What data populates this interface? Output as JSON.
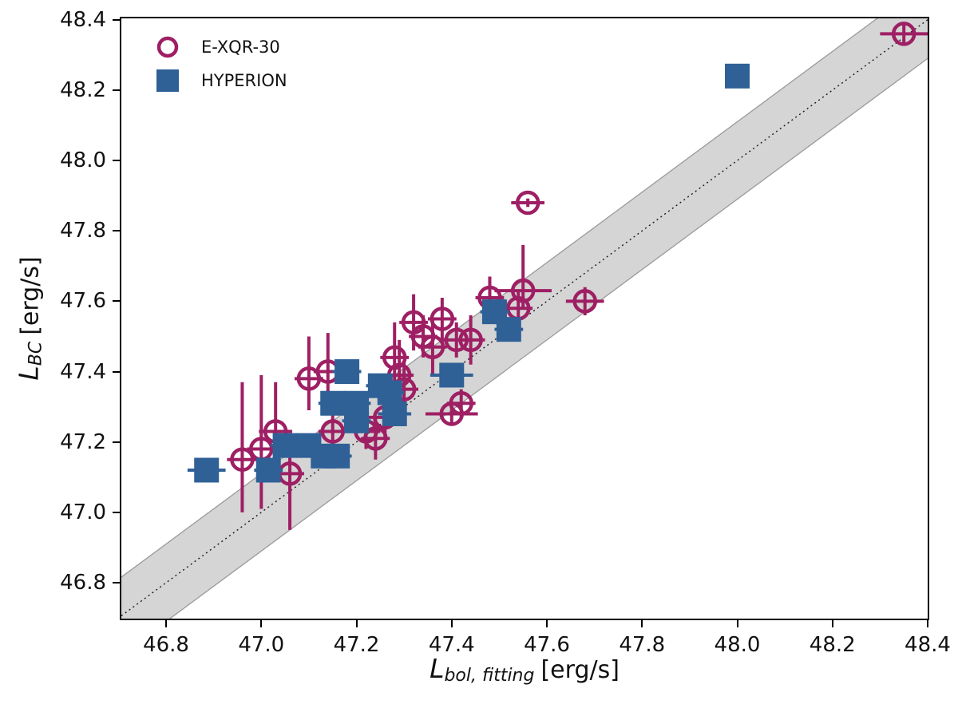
{
  "chart_data": {
    "type": "scatter",
    "xlabel": {
      "main": "L",
      "sub": "bol, fitting",
      "unit": "[erg/s]"
    },
    "ylabel": {
      "main": "L",
      "sub": "BC",
      "unit": "[erg/s]"
    },
    "xlim": [
      46.706,
      48.4
    ],
    "ylim": [
      46.698,
      48.404
    ],
    "x_ticks": [
      46.8,
      47.0,
      47.2,
      47.4,
      47.6,
      47.8,
      48.0,
      48.2,
      48.4
    ],
    "y_ticks": [
      46.8,
      47.0,
      47.2,
      47.4,
      47.6,
      47.8,
      48.0,
      48.2,
      48.4
    ],
    "grid": false,
    "legend_position": "upper-left",
    "band": {
      "description": "one-to-one relation y = x with shaded scatter band",
      "halfwidth": 0.11,
      "fill": "#d5d5d5",
      "edge_color": "#9a9a9a",
      "line_color": "#1a1a1a",
      "line_style": "dotted"
    },
    "series": [
      {
        "name": "E-XQR-30",
        "marker": "open-circle",
        "color": "#9e1f63",
        "point_format": [
          "x",
          "y",
          "xerr",
          "yerr_up",
          "yerr_down"
        ],
        "points": [
          [
            48.35,
            48.36,
            0.05,
            0.03,
            0.03
          ],
          [
            47.56,
            47.88,
            0.035,
            0.012,
            0.012
          ],
          [
            47.68,
            47.6,
            0.04,
            0.04,
            0.04
          ],
          [
            47.55,
            47.63,
            0.06,
            0.13,
            0.05
          ],
          [
            47.54,
            47.58,
            0.03,
            0.05,
            0.05
          ],
          [
            47.48,
            47.61,
            0.03,
            0.06,
            0.06
          ],
          [
            47.44,
            47.49,
            0.03,
            0.07,
            0.07
          ],
          [
            47.41,
            47.49,
            0.035,
            0.05,
            0.05
          ],
          [
            47.38,
            47.55,
            0.03,
            0.06,
            0.06
          ],
          [
            47.32,
            47.54,
            0.03,
            0.08,
            0.08
          ],
          [
            47.34,
            47.5,
            0.03,
            0.06,
            0.06
          ],
          [
            47.36,
            47.47,
            0.03,
            0.08,
            0.08
          ],
          [
            47.28,
            47.44,
            0.03,
            0.1,
            0.08
          ],
          [
            47.29,
            47.39,
            0.03,
            0.1,
            0.1
          ],
          [
            47.3,
            47.35,
            0.03,
            0.08,
            0.08
          ],
          [
            47.26,
            47.27,
            0.035,
            0.06,
            0.06
          ],
          [
            47.22,
            47.23,
            0.03,
            0.05,
            0.05
          ],
          [
            47.24,
            47.21,
            0.03,
            0.06,
            0.06
          ],
          [
            47.15,
            47.23,
            0.03,
            0.07,
            0.07
          ],
          [
            47.14,
            47.4,
            0.03,
            0.11,
            0.08
          ],
          [
            47.1,
            47.38,
            0.03,
            0.12,
            0.09
          ],
          [
            47.03,
            47.23,
            0.035,
            0.14,
            0.1
          ],
          [
            47.0,
            47.18,
            0.03,
            0.21,
            0.17
          ],
          [
            46.96,
            47.15,
            0.032,
            0.22,
            0.15
          ],
          [
            47.06,
            47.11,
            0.03,
            0.1,
            0.16
          ],
          [
            47.4,
            47.28,
            0.055,
            0.03,
            0.03
          ],
          [
            47.42,
            47.31,
            0.03,
            0.04,
            0.04
          ]
        ]
      },
      {
        "name": "HYPERION",
        "marker": "filled-square",
        "color": "#2f6096",
        "point_format": [
          "x",
          "y",
          "xerr"
        ],
        "points": [
          [
            46.885,
            47.12,
            0.04
          ],
          [
            47.015,
            47.12,
            0.03
          ],
          [
            47.05,
            47.19,
            0.03
          ],
          [
            47.1,
            47.19,
            0.03
          ],
          [
            47.13,
            47.16,
            0.03
          ],
          [
            47.16,
            47.16,
            0.03
          ],
          [
            47.15,
            47.31,
            0.03
          ],
          [
            47.2,
            47.31,
            0.03
          ],
          [
            47.18,
            47.4,
            0.03
          ],
          [
            47.25,
            47.36,
            0.03
          ],
          [
            47.27,
            47.34,
            0.03
          ],
          [
            47.28,
            47.28,
            0.035
          ],
          [
            47.2,
            47.26,
            0.03
          ],
          [
            47.4,
            47.39,
            0.045
          ],
          [
            47.49,
            47.57,
            0.03
          ],
          [
            47.52,
            47.52,
            0.03
          ],
          [
            48.0,
            48.24,
            0.02
          ]
        ]
      }
    ]
  }
}
